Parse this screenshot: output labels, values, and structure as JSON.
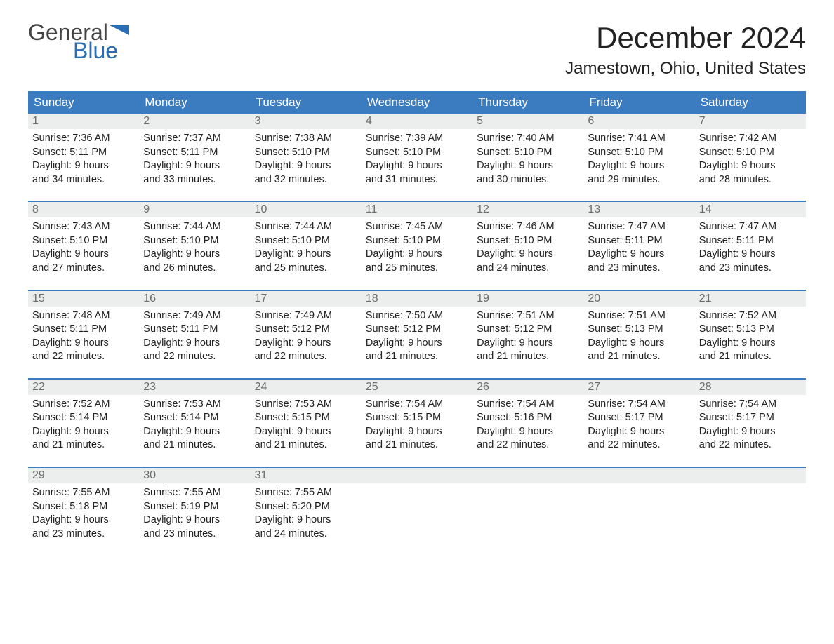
{
  "logo": {
    "textTop": "General",
    "textBottom": "Blue",
    "flagColor": "#2a6fb5"
  },
  "header": {
    "monthTitle": "December 2024",
    "location": "Jamestown, Ohio, United States"
  },
  "colors": {
    "headerBar": "#3b7bbf",
    "weekBorder": "#3b7bbf",
    "dayNumBg": "#eceded",
    "dayNumText": "#6b6b6b",
    "bodyText": "#222222",
    "background": "#ffffff"
  },
  "dow": [
    "Sunday",
    "Monday",
    "Tuesday",
    "Wednesday",
    "Thursday",
    "Friday",
    "Saturday"
  ],
  "labels": {
    "sunrisePrefix": "Sunrise: ",
    "sunsetPrefix": "Sunset: ",
    "daylightPrefix": "Daylight: ",
    "daylightHoursWord": " hours",
    "daylightAnd": "and ",
    "daylightMinSuffix": " minutes."
  },
  "weeks": [
    [
      {
        "d": 1,
        "sunrise": "7:36 AM",
        "sunset": "5:11 PM",
        "dh": 9,
        "dm": 34
      },
      {
        "d": 2,
        "sunrise": "7:37 AM",
        "sunset": "5:11 PM",
        "dh": 9,
        "dm": 33
      },
      {
        "d": 3,
        "sunrise": "7:38 AM",
        "sunset": "5:10 PM",
        "dh": 9,
        "dm": 32
      },
      {
        "d": 4,
        "sunrise": "7:39 AM",
        "sunset": "5:10 PM",
        "dh": 9,
        "dm": 31
      },
      {
        "d": 5,
        "sunrise": "7:40 AM",
        "sunset": "5:10 PM",
        "dh": 9,
        "dm": 30
      },
      {
        "d": 6,
        "sunrise": "7:41 AM",
        "sunset": "5:10 PM",
        "dh": 9,
        "dm": 29
      },
      {
        "d": 7,
        "sunrise": "7:42 AM",
        "sunset": "5:10 PM",
        "dh": 9,
        "dm": 28
      }
    ],
    [
      {
        "d": 8,
        "sunrise": "7:43 AM",
        "sunset": "5:10 PM",
        "dh": 9,
        "dm": 27
      },
      {
        "d": 9,
        "sunrise": "7:44 AM",
        "sunset": "5:10 PM",
        "dh": 9,
        "dm": 26
      },
      {
        "d": 10,
        "sunrise": "7:44 AM",
        "sunset": "5:10 PM",
        "dh": 9,
        "dm": 25
      },
      {
        "d": 11,
        "sunrise": "7:45 AM",
        "sunset": "5:10 PM",
        "dh": 9,
        "dm": 25
      },
      {
        "d": 12,
        "sunrise": "7:46 AM",
        "sunset": "5:10 PM",
        "dh": 9,
        "dm": 24
      },
      {
        "d": 13,
        "sunrise": "7:47 AM",
        "sunset": "5:11 PM",
        "dh": 9,
        "dm": 23
      },
      {
        "d": 14,
        "sunrise": "7:47 AM",
        "sunset": "5:11 PM",
        "dh": 9,
        "dm": 23
      }
    ],
    [
      {
        "d": 15,
        "sunrise": "7:48 AM",
        "sunset": "5:11 PM",
        "dh": 9,
        "dm": 22
      },
      {
        "d": 16,
        "sunrise": "7:49 AM",
        "sunset": "5:11 PM",
        "dh": 9,
        "dm": 22
      },
      {
        "d": 17,
        "sunrise": "7:49 AM",
        "sunset": "5:12 PM",
        "dh": 9,
        "dm": 22
      },
      {
        "d": 18,
        "sunrise": "7:50 AM",
        "sunset": "5:12 PM",
        "dh": 9,
        "dm": 21
      },
      {
        "d": 19,
        "sunrise": "7:51 AM",
        "sunset": "5:12 PM",
        "dh": 9,
        "dm": 21
      },
      {
        "d": 20,
        "sunrise": "7:51 AM",
        "sunset": "5:13 PM",
        "dh": 9,
        "dm": 21
      },
      {
        "d": 21,
        "sunrise": "7:52 AM",
        "sunset": "5:13 PM",
        "dh": 9,
        "dm": 21
      }
    ],
    [
      {
        "d": 22,
        "sunrise": "7:52 AM",
        "sunset": "5:14 PM",
        "dh": 9,
        "dm": 21
      },
      {
        "d": 23,
        "sunrise": "7:53 AM",
        "sunset": "5:14 PM",
        "dh": 9,
        "dm": 21
      },
      {
        "d": 24,
        "sunrise": "7:53 AM",
        "sunset": "5:15 PM",
        "dh": 9,
        "dm": 21
      },
      {
        "d": 25,
        "sunrise": "7:54 AM",
        "sunset": "5:15 PM",
        "dh": 9,
        "dm": 21
      },
      {
        "d": 26,
        "sunrise": "7:54 AM",
        "sunset": "5:16 PM",
        "dh": 9,
        "dm": 22
      },
      {
        "d": 27,
        "sunrise": "7:54 AM",
        "sunset": "5:17 PM",
        "dh": 9,
        "dm": 22
      },
      {
        "d": 28,
        "sunrise": "7:54 AM",
        "sunset": "5:17 PM",
        "dh": 9,
        "dm": 22
      }
    ],
    [
      {
        "d": 29,
        "sunrise": "7:55 AM",
        "sunset": "5:18 PM",
        "dh": 9,
        "dm": 23
      },
      {
        "d": 30,
        "sunrise": "7:55 AM",
        "sunset": "5:19 PM",
        "dh": 9,
        "dm": 23
      },
      {
        "d": 31,
        "sunrise": "7:55 AM",
        "sunset": "5:20 PM",
        "dh": 9,
        "dm": 24
      },
      null,
      null,
      null,
      null
    ]
  ]
}
